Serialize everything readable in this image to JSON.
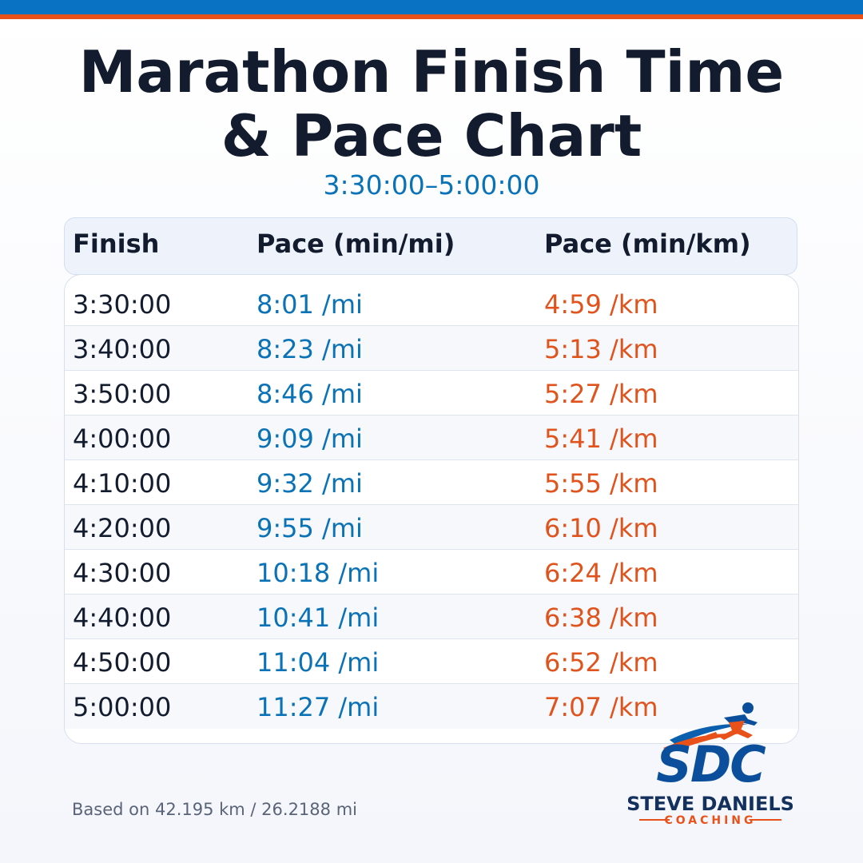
{
  "title_line1": "Marathon Finish Time",
  "title_line2": "& Pace Chart",
  "subtitle": "3:30:00–5:00:00",
  "table": {
    "headers": [
      "Finish",
      "Pace (min/mi)",
      "Pace (min/km)"
    ],
    "rows": [
      {
        "finish": "3:30:00",
        "mi": "8:01 /mi",
        "km": "4:59 /km"
      },
      {
        "finish": "3:40:00",
        "mi": "8:23 /mi",
        "km": "5:13 /km"
      },
      {
        "finish": "3:50:00",
        "mi": "8:46 /mi",
        "km": "5:27 /km"
      },
      {
        "finish": "4:00:00",
        "mi": "9:09 /mi",
        "km": "5:41 /km"
      },
      {
        "finish": "4:10:00",
        "mi": "9:32 /mi",
        "km": "5:55 /km"
      },
      {
        "finish": "4:20:00",
        "mi": "9:55 /mi",
        "km": "6:10 /km"
      },
      {
        "finish": "4:30:00",
        "mi": "10:18 /mi",
        "km": "6:24 /km"
      },
      {
        "finish": "4:40:00",
        "mi": "10:41 /mi",
        "km": "6:38 /km"
      },
      {
        "finish": "4:50:00",
        "mi": "11:04 /mi",
        "km": "6:52 /km"
      },
      {
        "finish": "5:00:00",
        "mi": "11:27 /mi",
        "km": "7:07 /km"
      }
    ]
  },
  "footnote": "Based on 42.195 km / 26.2188 mi",
  "logo": {
    "icon": "runner-icon",
    "letters": "SDC",
    "name": "STEVE DANIELS",
    "tagline": "COACHING"
  },
  "colors": {
    "brand_blue": "#0a72c2",
    "brand_orange": "#e8521a",
    "navy": "#131c2e"
  }
}
